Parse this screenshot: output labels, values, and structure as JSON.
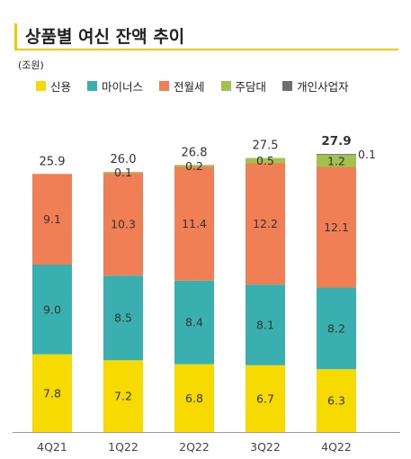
{
  "title": "상품별 여신 잔액 추이",
  "unit_label": "(조원)",
  "colors": {
    "credit": "#f7db00",
    "minus": "#3aafaf",
    "jeonse": "#f07f55",
    "mortgage": "#9fc34c",
    "sole": "#6e6e6e",
    "accent": "#f5c800"
  },
  "chart_data": {
    "type": "bar",
    "stacked": true,
    "categories": [
      "4Q21",
      "1Q22",
      "2Q22",
      "3Q22",
      "4Q22"
    ],
    "series": [
      {
        "name": "신용",
        "color_key": "credit",
        "values": [
          7.8,
          7.2,
          6.8,
          6.7,
          6.3
        ]
      },
      {
        "name": "마이너스",
        "color_key": "minus",
        "values": [
          9.0,
          8.5,
          8.4,
          8.1,
          8.2
        ]
      },
      {
        "name": "전월세",
        "color_key": "jeonse",
        "values": [
          9.1,
          10.3,
          11.4,
          12.2,
          12.1
        ]
      },
      {
        "name": "주담대",
        "color_key": "mortgage",
        "values": [
          null,
          0.1,
          0.2,
          0.5,
          1.2
        ]
      },
      {
        "name": "개인사업자",
        "color_key": "sole",
        "values": [
          null,
          null,
          null,
          null,
          0.1
        ]
      }
    ],
    "totals": [
      "25.9",
      "26.0",
      "26.8",
      "27.5",
      "27.9"
    ],
    "highlight_total_index": 4,
    "legend_position": "top-left",
    "grid": false
  }
}
